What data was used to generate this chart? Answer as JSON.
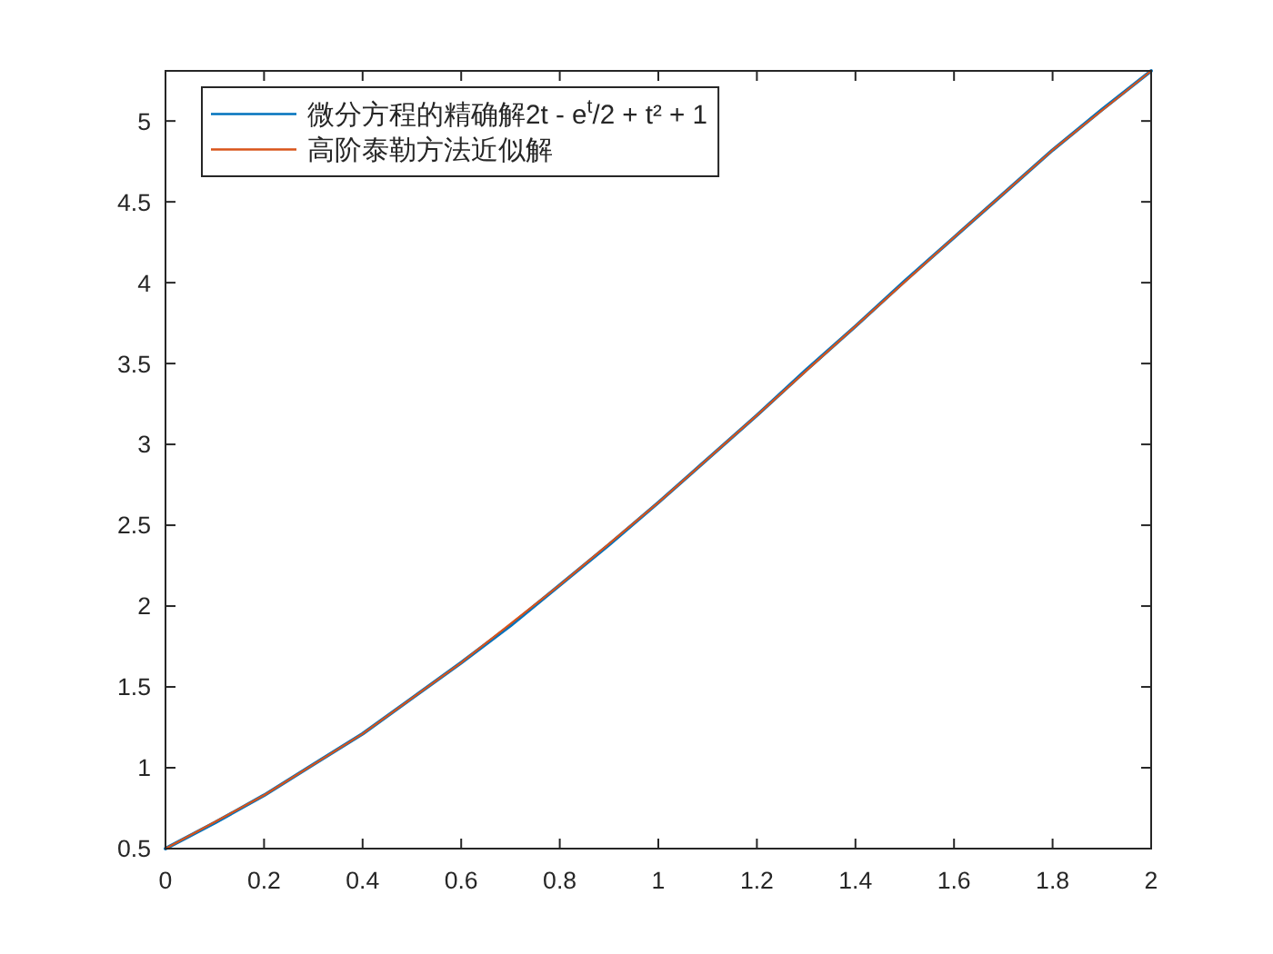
{
  "chart_data": {
    "type": "line",
    "xlim": [
      0,
      2
    ],
    "ylim": [
      0.5,
      5.31
    ],
    "xticks": [
      0,
      0.2,
      0.4,
      0.6,
      0.8,
      1,
      1.2,
      1.4,
      1.6,
      1.8,
      2
    ],
    "yticks": [
      0.5,
      1,
      1.5,
      2,
      2.5,
      3,
      3.5,
      4,
      4.5,
      5
    ],
    "legend": "top left",
    "series": [
      {
        "name": "微分方程的精确解2t - e$^{t}$/2 + t² + 1",
        "color": "#0072bd",
        "x": [
          0,
          0.1,
          0.2,
          0.3,
          0.4,
          0.5,
          0.6,
          0.7,
          0.8,
          0.9,
          1,
          1.1,
          1.2,
          1.3,
          1.4,
          1.5,
          1.6,
          1.7,
          1.8,
          1.9,
          2
        ],
        "values": [
          0.5,
          0.66,
          0.83,
          1.02,
          1.21,
          1.43,
          1.65,
          1.88,
          2.13,
          2.38,
          2.64,
          2.91,
          3.18,
          3.46,
          3.73,
          4.01,
          4.28,
          4.55,
          4.82,
          5.07,
          5.31
        ]
      },
      {
        "name": "高阶泰勒方法近似解",
        "color": "#d95319",
        "x": [
          0,
          0.2,
          0.4,
          0.6,
          0.8,
          1,
          1.2,
          1.4,
          1.6,
          1.8,
          2
        ],
        "values": [
          0.5,
          0.83,
          1.21,
          1.65,
          2.13,
          2.64,
          3.18,
          3.73,
          4.28,
          4.82,
          5.31
        ]
      }
    ]
  }
}
